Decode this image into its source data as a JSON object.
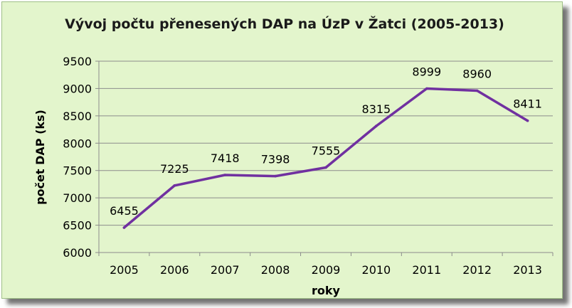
{
  "chart_data": {
    "type": "line",
    "title": "Vývoj počtu přenesených DAP na ÚzP v Žatci (2005-2013)",
    "xlabel": "roky",
    "ylabel": "počet DAP (ks)",
    "categories": [
      "2005",
      "2006",
      "2007",
      "2008",
      "2009",
      "2010",
      "2011",
      "2012",
      "2013"
    ],
    "values": [
      6455,
      7225,
      7418,
      7398,
      7555,
      8315,
      8999,
      8960,
      8411
    ],
    "data_labels": [
      "6455",
      "7225",
      "7418",
      "7398",
      "7555",
      "8315",
      "8999",
      "8960",
      "8411"
    ],
    "ylim": [
      6000,
      9500
    ],
    "yticks": [
      "6000",
      "6500",
      "7000",
      "7500",
      "8000",
      "8500",
      "9000",
      "9500"
    ],
    "grid": true,
    "colors": {
      "line": "#7030a0",
      "background": "#e3f5cc",
      "grid": "#8c8c8c"
    }
  }
}
